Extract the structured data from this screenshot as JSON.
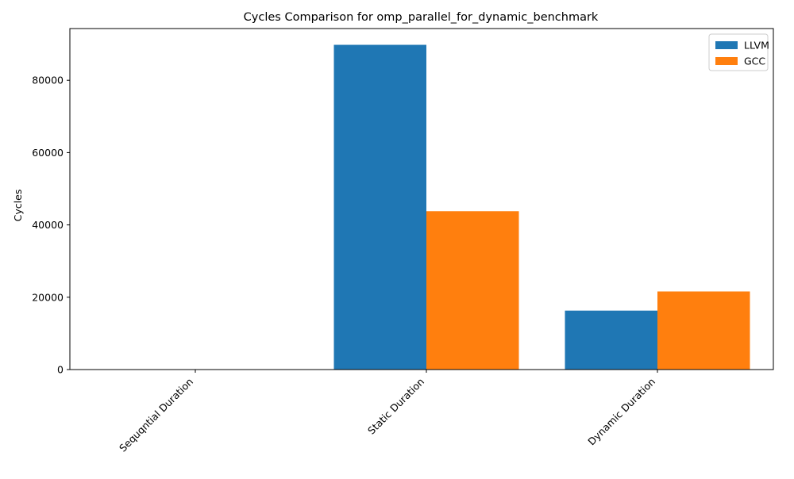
{
  "chart_data": {
    "type": "bar",
    "title": "Cycles Comparison for omp_parallel_for_dynamic_benchmark",
    "xlabel": "",
    "ylabel": "Cycles",
    "categories": [
      "Sequqntial Duration",
      "Static Duration",
      "Dynamic Duration"
    ],
    "series": [
      {
        "name": "LLVM",
        "color": "#1f77b4",
        "values": [
          0,
          89800,
          16300
        ]
      },
      {
        "name": "GCC",
        "color": "#ff7f0e",
        "values": [
          0,
          43800,
          21600
        ]
      }
    ],
    "ylim": [
      0,
      94300
    ],
    "yticks": [
      0,
      20000,
      40000,
      60000,
      80000
    ],
    "ytick_labels": [
      "0",
      "20000",
      "40000",
      "60000",
      "80000"
    ],
    "grid": false,
    "legend_position": "top-right"
  }
}
